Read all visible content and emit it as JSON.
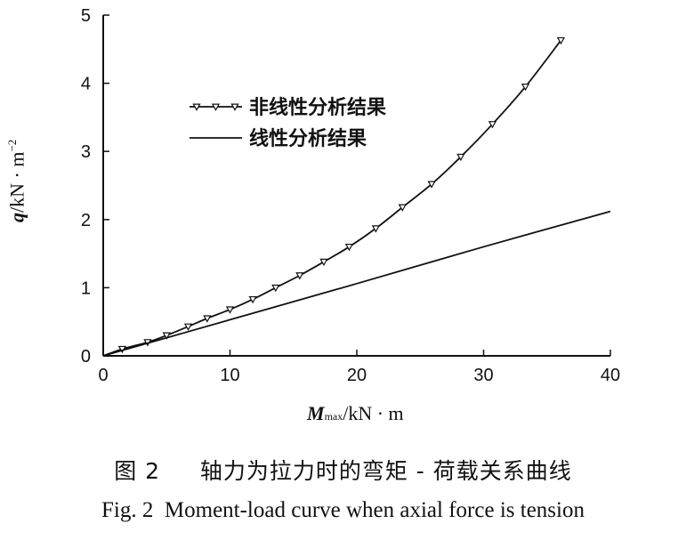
{
  "chart_data": {
    "type": "line",
    "xlabel": {
      "symbol": "M",
      "subscript": "max",
      "unit": "/kN · m"
    },
    "ylabel": {
      "symbol": "q",
      "unit": "/kN · m",
      "exponent": "−2"
    },
    "xlim": [
      0,
      40
    ],
    "ylim": [
      0,
      5
    ],
    "x_ticks": [
      "0",
      "10",
      "20",
      "30",
      "40"
    ],
    "y_ticks": [
      "0",
      "1",
      "2",
      "3",
      "4",
      "5"
    ],
    "legend_position": "top-left",
    "series": [
      {
        "name": "非线性分析结果",
        "marker": "triangle-down",
        "color": "#111111",
        "points": [
          [
            0,
            0
          ],
          [
            1.5,
            0.1
          ],
          [
            3.5,
            0.2
          ],
          [
            5,
            0.3
          ],
          [
            6.7,
            0.43
          ],
          [
            8.2,
            0.55
          ],
          [
            10,
            0.68
          ],
          [
            11.8,
            0.83
          ],
          [
            13.6,
            1.0
          ],
          [
            15.5,
            1.18
          ],
          [
            17.4,
            1.38
          ],
          [
            19.4,
            1.6
          ],
          [
            21.5,
            1.87
          ],
          [
            23.6,
            2.18
          ],
          [
            25.9,
            2.52
          ],
          [
            28.2,
            2.92
          ],
          [
            30.7,
            3.4
          ],
          [
            33.3,
            3.95
          ],
          [
            36.1,
            4.63
          ]
        ]
      },
      {
        "name": "线性分析结果",
        "marker": "none",
        "color": "#111111",
        "points": [
          [
            0,
            0
          ],
          [
            10,
            0.53
          ],
          [
            20,
            1.06
          ],
          [
            30,
            1.6
          ],
          [
            40,
            2.12
          ]
        ]
      }
    ]
  },
  "caption": {
    "cn_label": "图 2",
    "cn_text": "轴力为拉力时的弯矩 - 荷载关系曲线",
    "en_label": "Fig. 2",
    "en_text": "Moment-load curve when axial force is tension"
  }
}
